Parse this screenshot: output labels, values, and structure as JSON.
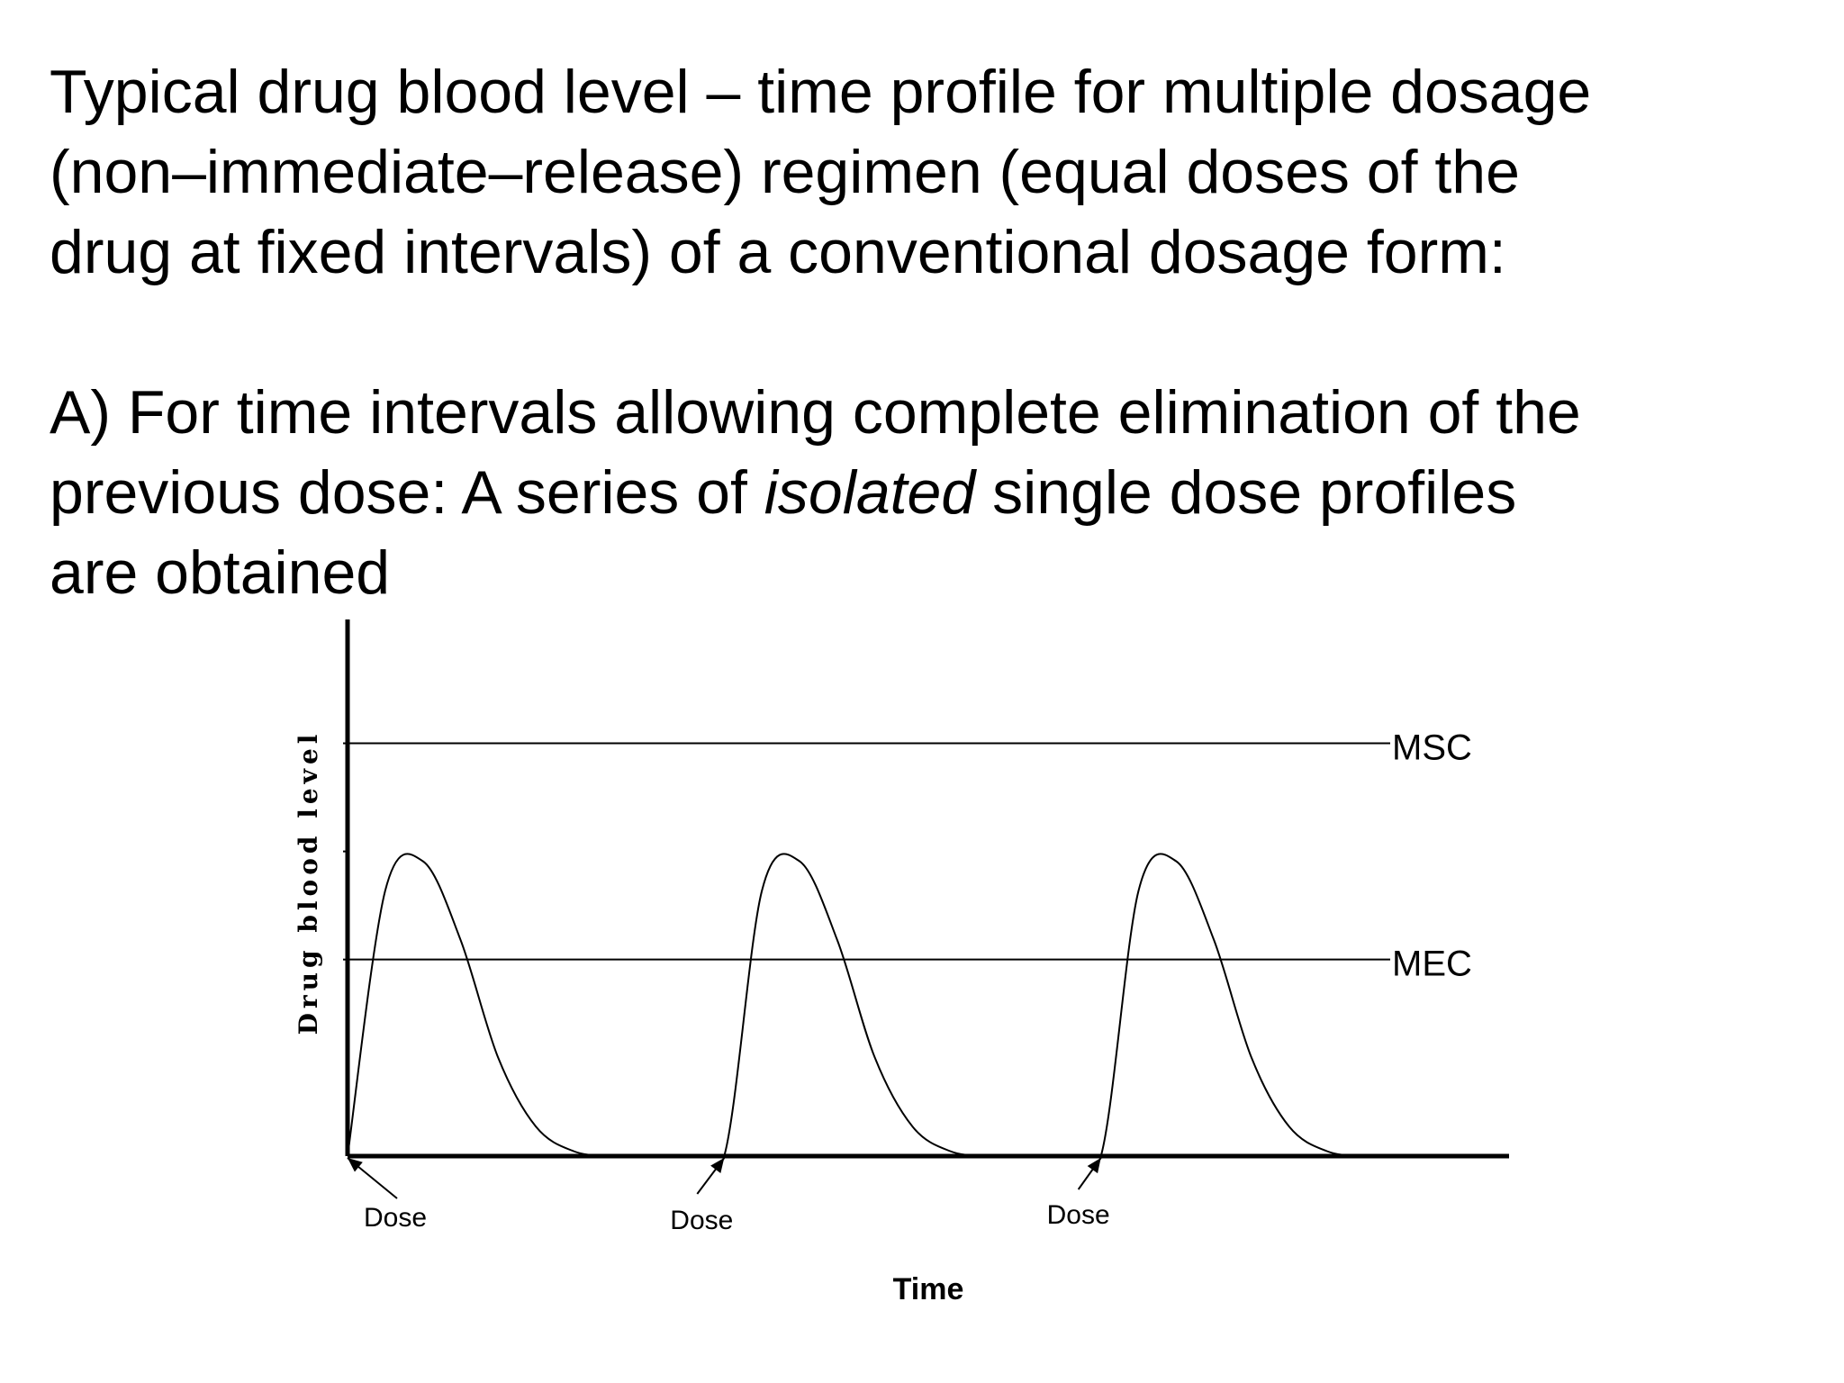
{
  "heading": {
    "line1": "Typical drug blood level – time profile for multiple dosage",
    "line2": "(non–immediate–release) regimen (equal doses of the",
    "line3": "drug at fixed intervals) of a conventional dosage form:"
  },
  "point_a": {
    "line1": "A) For time intervals allowing complete elimination of the",
    "line2_before": "previous dose: A series of ",
    "line2_italic": "isolated",
    "line2_after": " single dose profiles",
    "line3": "are obtained"
  },
  "chart_data": {
    "type": "line",
    "xlabel": "Time",
    "ylabel": "Drug blood level",
    "x": [
      0,
      1,
      2,
      3,
      4,
      5,
      6,
      7,
      8,
      9,
      10,
      11,
      12,
      13,
      14,
      15,
      16,
      17,
      18,
      19,
      20,
      21,
      22,
      23,
      24,
      25,
      26,
      27,
      28,
      29,
      30
    ],
    "series": [
      {
        "values": [
          0,
          2.7,
          3.0,
          2.2,
          1.0,
          0.3,
          0.05,
          0,
          0,
          0,
          0,
          2.7,
          3.0,
          2.2,
          1.0,
          0.3,
          0.05,
          0,
          0,
          0,
          0,
          2.7,
          3.0,
          2.2,
          1.0,
          0.3,
          0.05,
          0,
          0,
          0,
          0
        ]
      }
    ],
    "reference_lines": [
      {
        "label": "MSC",
        "value": 4.2
      },
      {
        "label": "MEC",
        "value": 2.0
      }
    ],
    "dose_times": [
      0,
      10,
      20
    ],
    "dose_label": "Dose",
    "legend": "none",
    "grid": false,
    "colors": {
      "line": "#000000",
      "axis": "#000000"
    }
  }
}
